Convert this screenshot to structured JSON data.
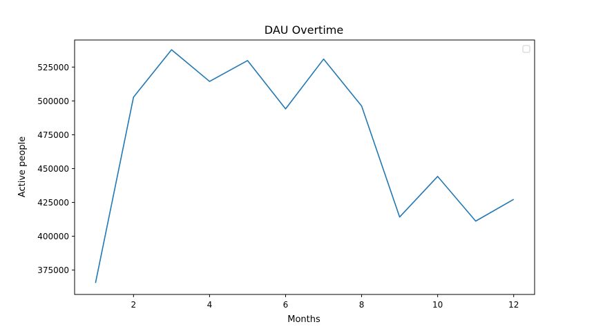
{
  "chart_data": {
    "type": "line",
    "title": "DAU Overtime",
    "xlabel": "Months",
    "ylabel": "Active people",
    "x": [
      1,
      2,
      3,
      4,
      5,
      6,
      7,
      8,
      9,
      10,
      11,
      12
    ],
    "series": [
      {
        "color": "#1f77b4",
        "values": [
          365500,
          502800,
          537800,
          514400,
          529800,
          494100,
          530900,
          496200,
          414200,
          444200,
          411200,
          427300
        ]
      }
    ],
    "xlim": [
      0.45,
      12.55
    ],
    "ylim": [
      357000,
      545000
    ],
    "xticks": [
      2,
      4,
      6,
      8,
      10,
      12
    ],
    "xtick_labels": [
      "2",
      "4",
      "6",
      "8",
      "10",
      "12"
    ],
    "yticks": [
      375000,
      400000,
      425000,
      450000,
      475000,
      500000,
      525000
    ],
    "ytick_labels": [
      "375000",
      "400000",
      "425000",
      "450000",
      "475000",
      "500000",
      "525000"
    ],
    "grid": false,
    "legend": {
      "placement": "top-right",
      "entries": []
    }
  }
}
